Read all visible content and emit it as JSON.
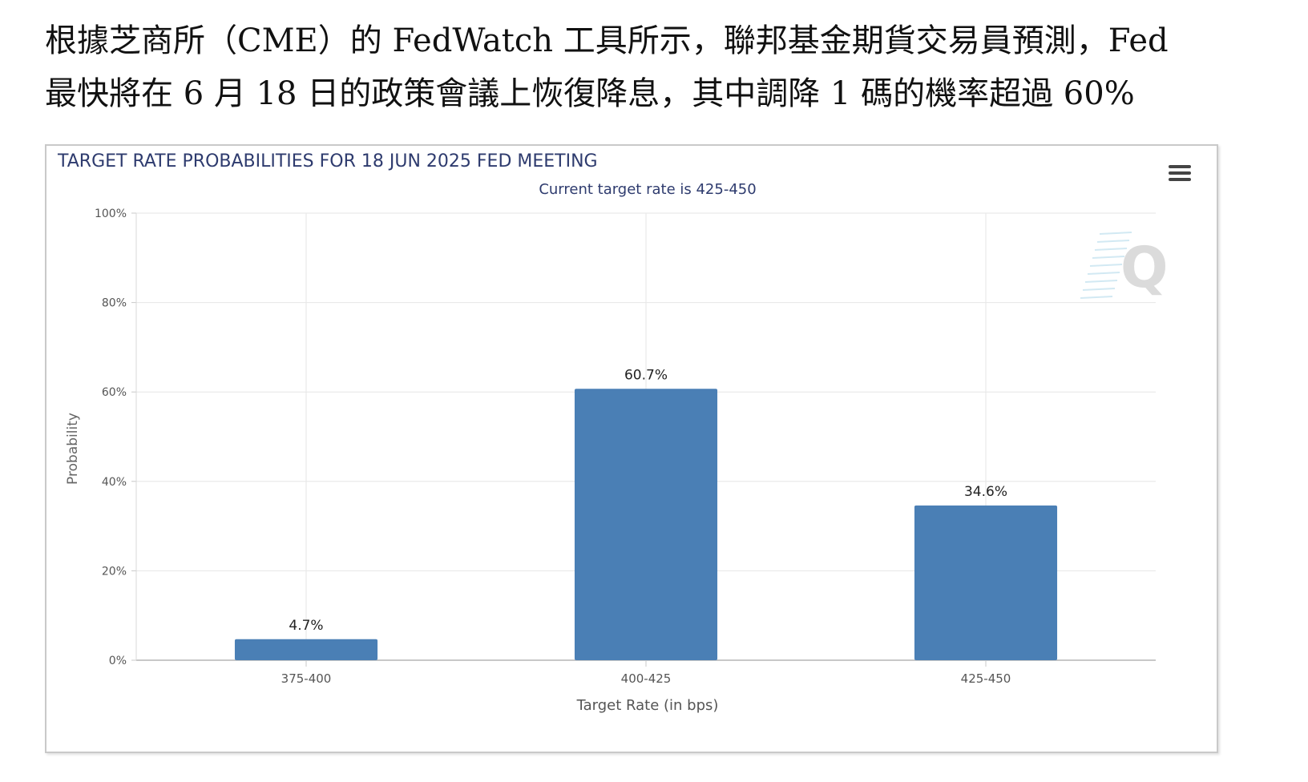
{
  "headline": {
    "line1": "根據芝商所（CME）的 FedWatch 工具所示，聯邦基金期貨交易員預測，Fed",
    "line2": "最快將在 6 月 18 日的政策會議上恢復降息，其中調降 1 碼的機率超過 60%"
  },
  "chart_data": {
    "type": "bar",
    "title": "TARGET RATE PROBABILITIES FOR 18 JUN 2025 FED MEETING",
    "subtitle": "Current target rate is 425-450",
    "categories": [
      "375-400",
      "400-425",
      "425-450"
    ],
    "values": [
      4.7,
      60.7,
      34.6
    ],
    "data_labels": [
      "4.7%",
      "60.7%",
      "34.6%"
    ],
    "xlabel": "Target Rate (in bps)",
    "ylabel": "Probability",
    "ylim": [
      0,
      100
    ],
    "yticks": [
      0,
      20,
      40,
      60,
      80,
      100
    ],
    "ytick_labels": [
      "0%",
      "20%",
      "40%",
      "60%",
      "80%",
      "100%"
    ],
    "grid": true,
    "legend": "none",
    "bar_color": "#4a7fb5",
    "title_color": "#2e3b6e",
    "watermark": "Q"
  },
  "chart_menu": {
    "icon": "menu-icon"
  }
}
